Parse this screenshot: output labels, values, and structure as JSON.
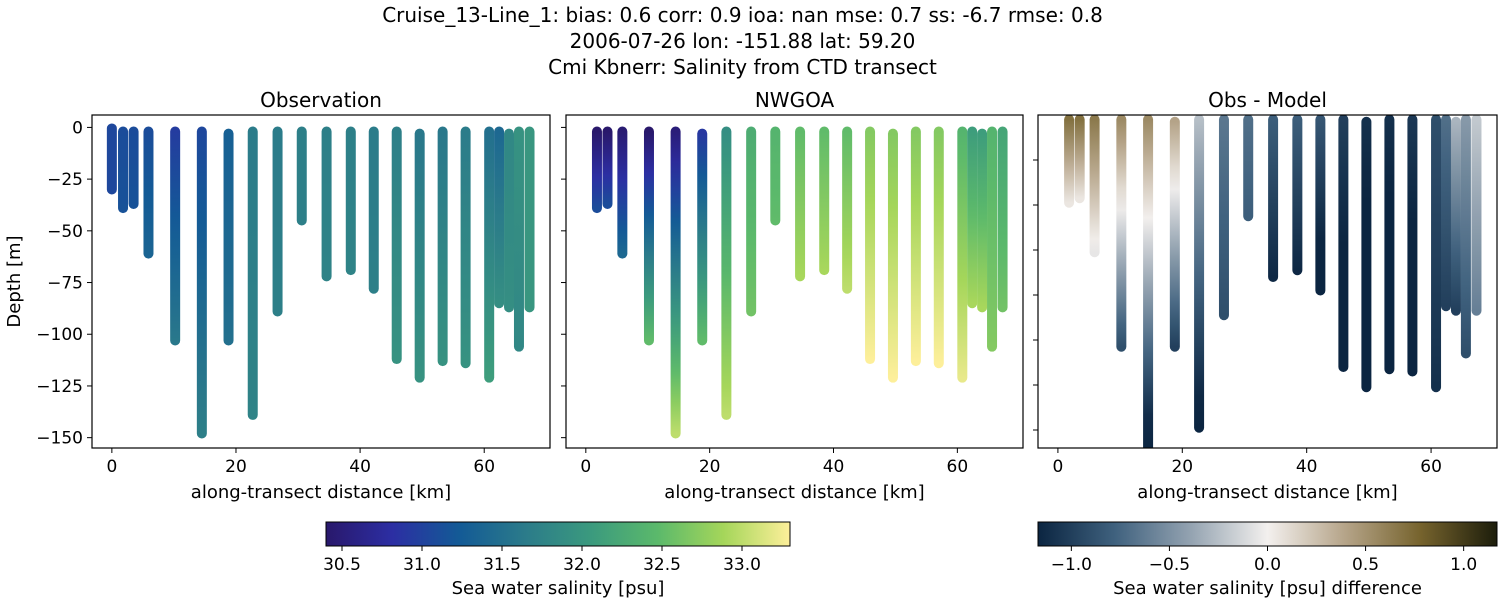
{
  "title_lines": [
    "Cruise_13-Line_1: bias: 0.6  corr: 0.9  ioa: nan  mse: 0.7  ss: -6.7  rmse: 0.8",
    "2006-07-26 lon: -151.88 lat: 59.20",
    "Cmi Kbnerr: Salinity from CTD transect"
  ],
  "chart_data": [
    {
      "type": "scatter",
      "title": "Observation",
      "xlabel": "along-transect distance [km]",
      "ylabel": "Depth [m]",
      "xlim": [
        -3.2,
        70.6
      ],
      "ylim": [
        -155,
        6
      ],
      "xticks": [
        0,
        20,
        40,
        60
      ],
      "yticks": [
        0,
        -25,
        -50,
        -75,
        -100,
        -125,
        -150
      ],
      "ytick_labels": [
        "0",
        "−25",
        "−50",
        "−75",
        "−100",
        "−125",
        "−150"
      ],
      "variable": "obs",
      "colormap": "salinity"
    },
    {
      "type": "scatter",
      "title": "NWGOA",
      "xlabel": "along-transect distance [km]",
      "xlim": [
        -3.2,
        70.6
      ],
      "ylim": [
        -155,
        6
      ],
      "xticks": [
        0,
        20,
        40,
        60
      ],
      "yticks": [
        0,
        -25,
        -50,
        -75,
        -100,
        -125,
        -150
      ],
      "variable": "model",
      "colormap": "salinity"
    },
    {
      "type": "scatter",
      "title": "Obs - Model",
      "xlabel": "along-transect distance [km]",
      "xlim": [
        -3.2,
        70.6
      ],
      "ylim": [
        -148,
        0
      ],
      "xticks": [
        0,
        20,
        40,
        60
      ],
      "yticks": [
        -20,
        -40,
        -60,
        -80,
        -100,
        -120,
        -140
      ],
      "variable": "diff",
      "colormap": "difference"
    }
  ],
  "stations": [
    {
      "km": 0.0,
      "top": -0.5,
      "bottom": -30,
      "obs": [
        31.05,
        31.05
      ],
      "model": null
    },
    {
      "km": 1.8,
      "top": -2,
      "bottom": -39,
      "obs": [
        31.1,
        31.15
      ],
      "model": [
        30.4,
        31.1
      ]
    },
    {
      "km": 3.5,
      "top": -2,
      "bottom": -37,
      "obs": [
        31.1,
        31.15
      ],
      "model": [
        30.4,
        31.1
      ]
    },
    {
      "km": 5.9,
      "top": -2,
      "bottom": -61,
      "obs": [
        31.1,
        31.35
      ],
      "model": [
        30.45,
        31.4
      ]
    },
    {
      "km": 10.2,
      "top": -2,
      "bottom": -103,
      "obs": [
        30.95,
        31.6
      ],
      "model": [
        30.4,
        32.5
      ]
    },
    {
      "km": 14.5,
      "top": -2,
      "bottom": -148,
      "obs": [
        31.05,
        31.7
      ],
      "model": [
        30.5,
        33.0
      ]
    },
    {
      "km": 18.8,
      "top": -3,
      "bottom": -103,
      "obs": [
        31.3,
        31.5
      ],
      "model": [
        30.9,
        32.5
      ]
    },
    {
      "km": 22.7,
      "top": -2,
      "bottom": -139,
      "obs": [
        31.65,
        31.75
      ],
      "model": [
        31.9,
        33.0
      ]
    },
    {
      "km": 26.7,
      "top": -2,
      "bottom": -89,
      "obs": [
        31.65,
        31.7
      ],
      "model": [
        32.3,
        32.6
      ]
    },
    {
      "km": 30.6,
      "top": -2,
      "bottom": -45,
      "obs": [
        31.7,
        31.7
      ],
      "model": [
        32.4,
        32.5
      ]
    },
    {
      "km": 34.6,
      "top": -2,
      "bottom": -72,
      "obs": [
        31.7,
        31.75
      ],
      "model": [
        32.5,
        32.9
      ]
    },
    {
      "km": 38.5,
      "top": -2,
      "bottom": -69,
      "obs": [
        31.7,
        31.75
      ],
      "model": [
        32.5,
        32.9
      ]
    },
    {
      "km": 42.2,
      "top": -2,
      "bottom": -78,
      "obs": [
        31.65,
        31.7
      ],
      "model": [
        32.5,
        33.0
      ]
    },
    {
      "km": 45.9,
      "top": -2,
      "bottom": -112,
      "obs": [
        31.7,
        31.95
      ],
      "model": [
        32.7,
        33.3
      ]
    },
    {
      "km": 49.6,
      "top": -3,
      "bottom": -121,
      "obs": [
        31.6,
        31.95
      ],
      "model": [
        32.7,
        33.3
      ]
    },
    {
      "km": 53.3,
      "top": -2,
      "bottom": -113,
      "obs": [
        31.6,
        31.95
      ],
      "model": [
        32.7,
        33.3
      ]
    },
    {
      "km": 57.0,
      "top": -2,
      "bottom": -114,
      "obs": [
        31.65,
        31.95
      ],
      "model": [
        32.7,
        33.3
      ]
    },
    {
      "km": 60.8,
      "top": -2,
      "bottom": -121,
      "obs": [
        31.5,
        32.1
      ],
      "model": [
        32.4,
        33.2
      ]
    },
    {
      "km": 62.4,
      "top": -2,
      "bottom": -85,
      "obs": [
        31.4,
        31.9
      ],
      "model": [
        32.1,
        32.9
      ]
    },
    {
      "km": 64.0,
      "top": -3,
      "bottom": -87,
      "obs": [
        31.8,
        31.9
      ],
      "model": [
        32.1,
        32.9
      ]
    },
    {
      "km": 65.6,
      "top": -2,
      "bottom": -106,
      "obs": [
        31.95,
        31.8
      ],
      "model": [
        32.4,
        32.7
      ]
    },
    {
      "km": 67.3,
      "top": -2,
      "bottom": -87,
      "obs": [
        32.0,
        32.0
      ],
      "model": [
        32.2,
        32.6
      ]
    }
  ],
  "colorbars": {
    "salinity": {
      "label": "Sea water salinity [psu]",
      "range": [
        30.4,
        33.3
      ],
      "ticks": [
        30.5,
        31.0,
        31.5,
        32.0,
        32.5,
        33.0
      ],
      "tick_labels": [
        "30.5",
        "31.0",
        "31.5",
        "32.0",
        "32.5",
        "33.0"
      ],
      "colors": [
        "#29186b",
        "#2c2ea3",
        "#135a96",
        "#2b7b8a",
        "#3b9a7e",
        "#5bb96b",
        "#a5d65a",
        "#fdef9a"
      ]
    },
    "difference": {
      "label": "Sea water salinity [psu] difference",
      "range": [
        -1.17,
        1.17
      ],
      "ticks": [
        -1.0,
        -0.5,
        0.0,
        0.5,
        1.0
      ],
      "tick_labels": [
        "−1.0",
        "−0.5",
        "0.0",
        "0.5",
        "1.0"
      ],
      "colors": [
        "#0b2541",
        "#3f617e",
        "#94a3b1",
        "#f3f0ee",
        "#b6a58a",
        "#76632d",
        "#1c1d0b"
      ]
    }
  }
}
